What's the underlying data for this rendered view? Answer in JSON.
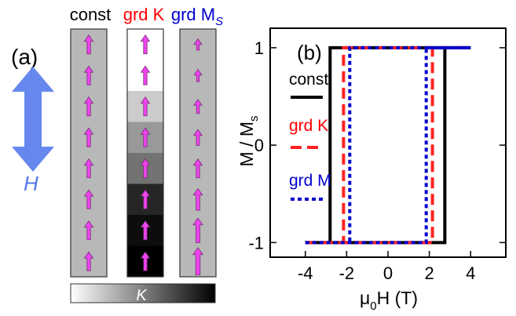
{
  "panel_a": {
    "label": "(a)",
    "field_label": "H",
    "columns": [
      {
        "label": "const",
        "label_color": "#000000",
        "cells": [
          0.75,
          0.75,
          0.75,
          0.75,
          0.75,
          0.75,
          0.75,
          0.75
        ],
        "arrows": [
          1,
          1,
          1,
          1,
          1,
          1,
          1,
          1
        ]
      },
      {
        "label": "grd K",
        "label_color": "#ff0000",
        "cells": [
          0.0,
          0.0,
          0.2,
          0.4,
          0.55,
          0.85,
          0.95,
          1.0
        ],
        "arrows": [
          1,
          1,
          1,
          1,
          1,
          1,
          1,
          1
        ]
      },
      {
        "label": "grd M",
        "label_sub": "S",
        "label_color": "#0000cc",
        "cells": [
          0.75,
          0.75,
          0.75,
          0.75,
          0.75,
          0.75,
          0.75,
          0.75
        ],
        "arrows": [
          0.6,
          0.65,
          0.75,
          0.85,
          1.0,
          1.15,
          1.3,
          1.45
        ]
      }
    ],
    "colorbar_label": "K",
    "colors": {
      "arrow": "#ee44ee",
      "h_arrow": "#6688ee",
      "h_label": "#5577ee",
      "cell_gray": "#b8b8b8"
    }
  },
  "chart_data": {
    "type": "line",
    "panel_label": "(b)",
    "xlabel": "μ",
    "xlabel_sub": "0",
    "xlabel_tail": "H (T)",
    "ylabel": "M / M",
    "ylabel_sub": "s",
    "xlim": [
      -5.7,
      5.7
    ],
    "ylim": [
      -1.15,
      1.2
    ],
    "xticks": [
      -4,
      -2,
      0,
      2,
      4
    ],
    "xtick_labels": [
      "-4",
      "-2",
      "0",
      "2",
      "4"
    ],
    "yticks": [
      -1,
      0,
      1
    ],
    "ytick_labels": [
      "-1",
      "0",
      "1"
    ],
    "series": [
      {
        "name": "const",
        "color": "#000000",
        "dash": "",
        "loop": [
          [
            -4,
            -1
          ],
          [
            2.75,
            -1
          ],
          [
            2.75,
            1
          ],
          [
            4,
            1
          ],
          [
            -2.8,
            1
          ],
          [
            -2.8,
            -1
          ]
        ]
      },
      {
        "name": "grd K",
        "color": "#ff2222",
        "dash": "14 7",
        "loop": [
          [
            -4,
            -1
          ],
          [
            2.15,
            -1
          ],
          [
            2.15,
            1
          ],
          [
            4,
            1
          ],
          [
            -2.15,
            1
          ],
          [
            -2.15,
            -1
          ]
        ]
      },
      {
        "name": "grd M",
        "color": "#0000cc",
        "dash": "5 4",
        "loop": [
          [
            -4,
            -1
          ],
          [
            1.85,
            -1
          ],
          [
            1.85,
            1
          ],
          [
            4,
            1
          ],
          [
            -1.85,
            1
          ],
          [
            -1.85,
            -1
          ]
        ]
      }
    ],
    "legend": {
      "placement": "left",
      "items": [
        {
          "label": "const",
          "color": "#000000"
        },
        {
          "label": "grd K",
          "color": "#ff0000"
        },
        {
          "label": "grd M",
          "color": "#0000cc"
        }
      ]
    }
  }
}
